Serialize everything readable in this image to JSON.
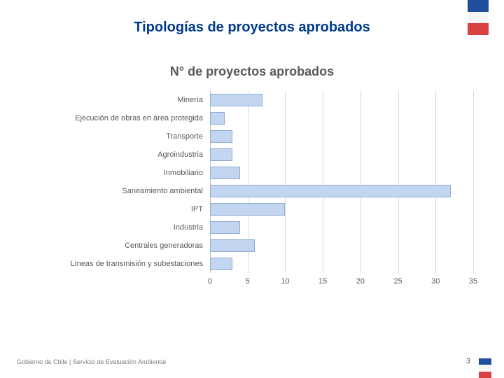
{
  "header": {
    "title": "Tipologías de proyectos aprobados",
    "title_color": "#013b8b",
    "title_fontsize": 20,
    "subtitle": "N° de proyectos aprobados",
    "subtitle_color": "#595959",
    "subtitle_fontsize": 18
  },
  "flag_colors": {
    "top": "#1f4e9c",
    "mid": "#f5f5f5",
    "bot": "#d8413f"
  },
  "chart": {
    "type": "bar-horizontal",
    "xlim": [
      0,
      35
    ],
    "xtick_step": 5,
    "xticks": [
      0,
      5,
      10,
      15,
      20,
      25,
      30,
      35
    ],
    "tick_fontsize": 11,
    "tick_color": "#595959",
    "label_fontsize": 11,
    "label_color": "#595959",
    "grid_color": "#d9d9d9",
    "grid_dark_color": "#bfbfbf",
    "bar_fill": "#c3d6f0",
    "bar_border": "#8faad8",
    "background": "#ffffff",
    "categories": [
      {
        "label": "Minería",
        "value": 7
      },
      {
        "label": "Ejecución de obras en área protegida",
        "value": 2
      },
      {
        "label": "Transporte",
        "value": 3
      },
      {
        "label": "Agroindustria",
        "value": 3
      },
      {
        "label": "Inmobiliario",
        "value": 4
      },
      {
        "label": "Saneamiento ambiental",
        "value": 32
      },
      {
        "label": "IPT",
        "value": 10
      },
      {
        "label": "Industria",
        "value": 4
      },
      {
        "label": "Centrales generadoras",
        "value": 6
      },
      {
        "label": "Líneas de transmisión y subestaciones",
        "value": 3
      }
    ]
  },
  "footer": {
    "text": "Gobierno de Chile | Servicio de Evaluación Ambiental",
    "fontsize": 9,
    "color": "#7a7a7a",
    "page_number": "3",
    "page_color": "#595959",
    "page_fontsize": 11
  }
}
